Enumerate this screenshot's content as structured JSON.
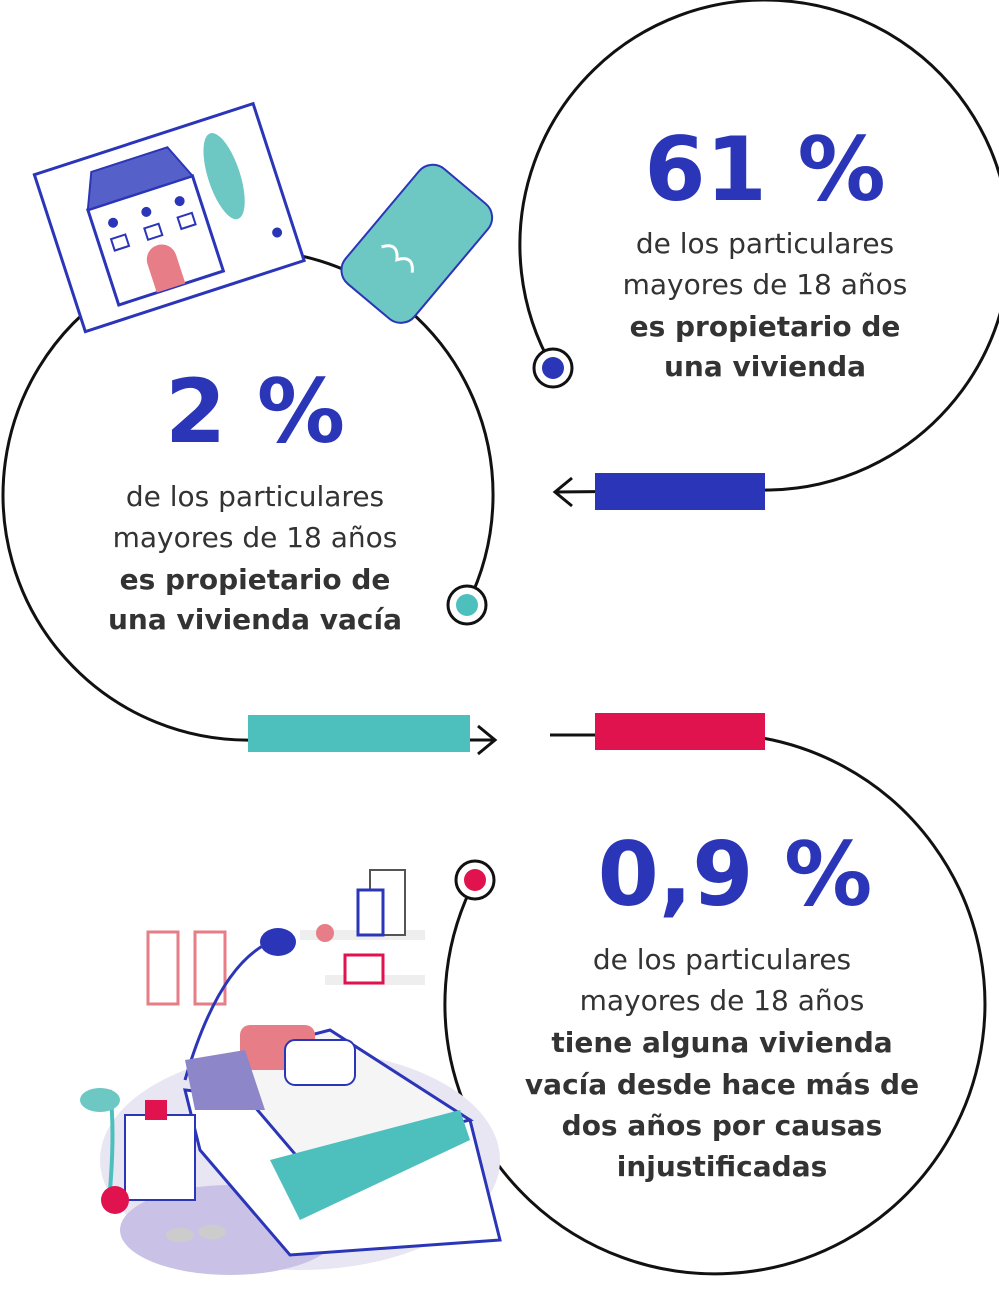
{
  "stats": [
    {
      "value": "61 %",
      "lines": [
        "de los particulares",
        "mayores de 18 años"
      ],
      "bold_lines": [
        "es propietario de",
        "una vivienda"
      ]
    },
    {
      "value": "2 %",
      "lines": [
        "de los particulares",
        "mayores de 18 años"
      ],
      "bold_lines": [
        "es propietario de",
        "una vivienda vacía"
      ]
    },
    {
      "value": "0,9 %",
      "lines": [
        "de los particulares",
        "mayores de 18 años"
      ],
      "bold_lines": [
        "tiene alguna vivienda",
        "vacía desde hace más de",
        "dos años por causas",
        "injustificadas"
      ]
    }
  ]
}
